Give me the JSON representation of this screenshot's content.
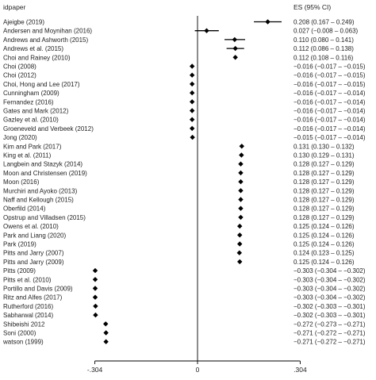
{
  "chart_data": {
    "type": "forest",
    "columns": {
      "label": "idpaper",
      "estimate": "ES (95% CI)"
    },
    "xlim": [
      -0.35,
      0.35
    ],
    "x_ticks": [
      {
        "value": -0.304,
        "label": "-.304"
      },
      {
        "value": 0,
        "label": "0"
      },
      {
        "value": 0.304,
        "label": ".304"
      }
    ],
    "rows": [
      {
        "label": "Ajeigbe (2019)",
        "es": 0.208,
        "lo": 0.167,
        "hi": 0.249,
        "ci_text": "0.208 (0.167 – 0.249)"
      },
      {
        "label": "Andersen and Moynihan (2016)",
        "es": 0.027,
        "lo": -0.008,
        "hi": 0.063,
        "ci_text": "0.027 (−0.008 – 0.063)"
      },
      {
        "label": "Andrews and Ashworth (2015)",
        "es": 0.11,
        "lo": 0.08,
        "hi": 0.141,
        "ci_text": "0.110 (0.080 – 0.141)"
      },
      {
        "label": "Andrews et al. (2015)",
        "es": 0.112,
        "lo": 0.086,
        "hi": 0.138,
        "ci_text": "0.112 (0.086 – 0.138)"
      },
      {
        "label": "Choi and Rainey (2010)",
        "es": 0.112,
        "lo": 0.108,
        "hi": 0.116,
        "ci_text": "0.112 (0.108 – 0.116)"
      },
      {
        "label": "Choi (2008)",
        "es": -0.016,
        "lo": -0.017,
        "hi": -0.015,
        "ci_text": "−0.016 (−0.017 – −0.015)"
      },
      {
        "label": "Choi (2012)",
        "es": -0.016,
        "lo": -0.017,
        "hi": -0.015,
        "ci_text": "−0.016 (−0.017 – −0.015)"
      },
      {
        "label": "Choi, Hong and Lee (2017)",
        "es": -0.016,
        "lo": -0.017,
        "hi": -0.015,
        "ci_text": "−0.016 (−0.017 – −0.015)"
      },
      {
        "label": "Cunningham (2009)",
        "es": -0.016,
        "lo": -0.017,
        "hi": -0.014,
        "ci_text": "−0.016 (−0.017 – −0.014)"
      },
      {
        "label": "Fernandez (2016)",
        "es": -0.016,
        "lo": -0.017,
        "hi": -0.014,
        "ci_text": "−0.016 (−0.017 – −0.014)"
      },
      {
        "label": "Gates and Mark (2012)",
        "es": -0.016,
        "lo": -0.017,
        "hi": -0.014,
        "ci_text": "−0.016 (−0.017 – −0.014)"
      },
      {
        "label": "Gazley et al. (2010)",
        "es": -0.016,
        "lo": -0.017,
        "hi": -0.014,
        "ci_text": "−0.016 (−0.017 – −0.014)"
      },
      {
        "label": "Groeneveld and Verbeek (2012)",
        "es": -0.016,
        "lo": -0.017,
        "hi": -0.014,
        "ci_text": "−0.016 (−0.017 – −0.014)"
      },
      {
        "label": "Jong (2020)",
        "es": -0.015,
        "lo": -0.017,
        "hi": -0.014,
        "ci_text": "−0.015 (−0.017 – −0.014)"
      },
      {
        "label": "Kim and Park (2017)",
        "es": 0.131,
        "lo": 0.13,
        "hi": 0.132,
        "ci_text": "0.131 (0.130 – 0.132)"
      },
      {
        "label": "King et al. (2011)",
        "es": 0.13,
        "lo": 0.129,
        "hi": 0.131,
        "ci_text": "0.130 (0.129 – 0.131)"
      },
      {
        "label": "Langbein and Stazyk (2014)",
        "es": 0.128,
        "lo": 0.127,
        "hi": 0.129,
        "ci_text": "0.128 (0.127 – 0.129)"
      },
      {
        "label": "Moon and Christensen (2019)",
        "es": 0.128,
        "lo": 0.127,
        "hi": 0.129,
        "ci_text": "0.128 (0.127 – 0.129)"
      },
      {
        "label": "Moon (2016)",
        "es": 0.128,
        "lo": 0.127,
        "hi": 0.129,
        "ci_text": "0.128 (0.127 – 0.129)"
      },
      {
        "label": "Murchiri and Ayoko (2013)",
        "es": 0.128,
        "lo": 0.127,
        "hi": 0.129,
        "ci_text": "0.128 (0.127 – 0.129)"
      },
      {
        "label": "Naff and Kellough (2015)",
        "es": 0.128,
        "lo": 0.127,
        "hi": 0.129,
        "ci_text": "0.128 (0.127 – 0.129)"
      },
      {
        "label": "Oberfild (2014)",
        "es": 0.128,
        "lo": 0.127,
        "hi": 0.129,
        "ci_text": "0.128 (0.127 – 0.129)"
      },
      {
        "label": "Opstrup and Villadsen (2015)",
        "es": 0.128,
        "lo": 0.127,
        "hi": 0.129,
        "ci_text": "0.128 (0.127 – 0.129)"
      },
      {
        "label": "Owens et al. (2010)",
        "es": 0.125,
        "lo": 0.124,
        "hi": 0.126,
        "ci_text": "0.125 (0.124 – 0.126)"
      },
      {
        "label": "Park and Liang (2020)",
        "es": 0.125,
        "lo": 0.124,
        "hi": 0.126,
        "ci_text": "0.125 (0.124 – 0.126)"
      },
      {
        "label": "Park (2019)",
        "es": 0.125,
        "lo": 0.124,
        "hi": 0.126,
        "ci_text": "0.125 (0.124 – 0.126)"
      },
      {
        "label": "Pitts and Jarry (2007)",
        "es": 0.124,
        "lo": 0.123,
        "hi": 0.125,
        "ci_text": "0.124 (0.123 – 0.125)"
      },
      {
        "label": "Pitts and Jarry (2009)",
        "es": 0.125,
        "lo": 0.124,
        "hi": 0.126,
        "ci_text": "0.125 (0.124 – 0.126)"
      },
      {
        "label": "Pitts (2009)",
        "es": -0.303,
        "lo": -0.304,
        "hi": -0.302,
        "ci_text": "−0.303 (−0.304 – −0.302)"
      },
      {
        "label": "Pitts et al. (2010)",
        "es": -0.303,
        "lo": -0.304,
        "hi": -0.302,
        "ci_text": "−0.303 (−0.304 – −0.302)"
      },
      {
        "label": "Portillo and Davis (2009)",
        "es": -0.303,
        "lo": -0.304,
        "hi": -0.302,
        "ci_text": "−0.303 (−0.304 – −0.302)"
      },
      {
        "label": "Ritz and Alfes (2017)",
        "es": -0.303,
        "lo": -0.304,
        "hi": -0.302,
        "ci_text": "−0.303 (−0.304 – −0.302)"
      },
      {
        "label": "Rutherford (2016)",
        "es": -0.302,
        "lo": -0.303,
        "hi": -0.301,
        "ci_text": "−0.302 (−0.303 – −0.301)"
      },
      {
        "label": "Sabharwal (2014)",
        "es": -0.302,
        "lo": -0.303,
        "hi": -0.301,
        "ci_text": "−0.302 (−0.303 – −0.301)"
      },
      {
        "label": "Shibeishi 2012",
        "es": -0.272,
        "lo": -0.273,
        "hi": -0.271,
        "ci_text": "−0.272 (−0.273 – −0.271)"
      },
      {
        "label": "Soni (2000)",
        "es": -0.271,
        "lo": -0.272,
        "hi": -0.271,
        "ci_text": "−0.271 (−0.272 – −0.271)"
      },
      {
        "label": "watson (1999)",
        "es": -0.271,
        "lo": -0.272,
        "hi": -0.271,
        "ci_text": "−0.271 (−0.272 – −0.271)"
      }
    ]
  }
}
